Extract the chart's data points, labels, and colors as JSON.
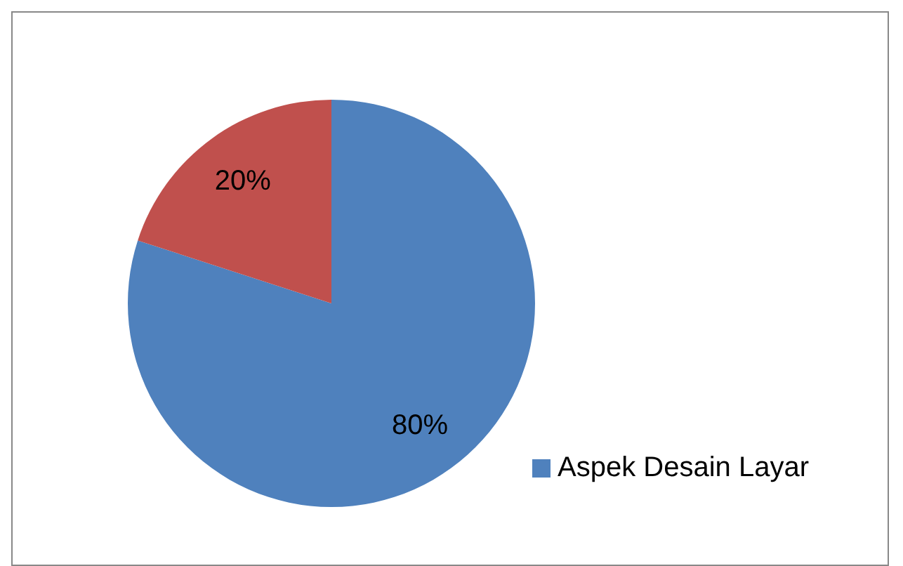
{
  "chart_data": {
    "type": "pie",
    "categories": [
      "Aspek Desain Layar",
      null
    ],
    "values": [
      80,
      20
    ],
    "colors": [
      "#4f81bd",
      "#c0504d"
    ],
    "value_labels": [
      "80%",
      "20%"
    ],
    "legend": "right"
  }
}
